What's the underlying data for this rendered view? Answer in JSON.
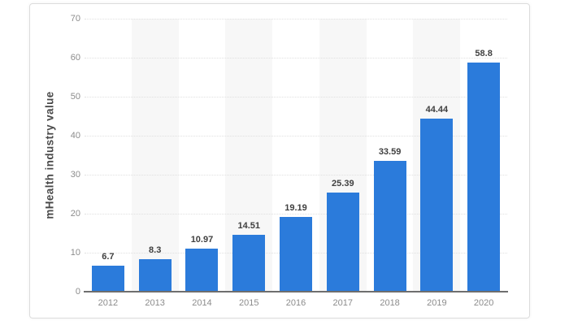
{
  "chart_data": {
    "type": "bar",
    "title": "",
    "ylabel": "mHealth industry value",
    "xlabel": "",
    "categories": [
      "2012",
      "2013",
      "2014",
      "2015",
      "2016",
      "2017",
      "2018",
      "2019",
      "2020"
    ],
    "values": [
      6.7,
      8.3,
      10.97,
      14.51,
      19.19,
      25.39,
      33.59,
      44.44,
      58.8
    ],
    "value_labels": [
      "6.7",
      "8.3",
      "10.97",
      "14.51",
      "19.19",
      "25.39",
      "33.59",
      "44.44",
      "58.8"
    ],
    "ylim": [
      0,
      70
    ],
    "yticks": [
      0,
      10,
      20,
      30,
      40,
      50,
      60,
      70
    ],
    "grid": "horizontal dotted",
    "legend": "none",
    "band_columns": [
      1,
      3,
      5,
      7
    ],
    "colors": {
      "bar": "#2b7bdb",
      "plot_band": "#f7f7f7",
      "gridline": "#e0e0e0",
      "axis_line": "#6e6e6e",
      "tick_label": "#8c8c8c",
      "value_label": "#404040",
      "axis_title": "#4a4a4a",
      "card_border": "#dcdcdc",
      "background": "#ffffff"
    }
  }
}
